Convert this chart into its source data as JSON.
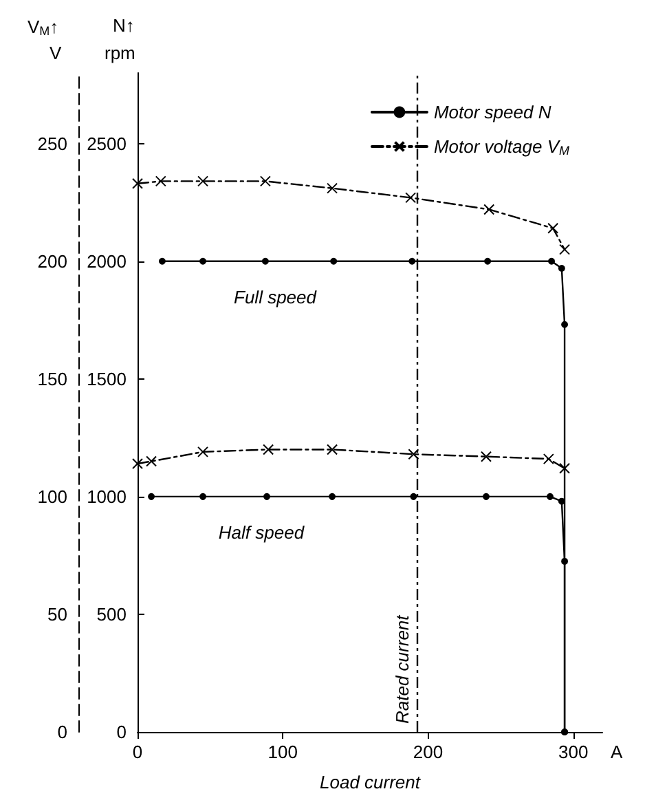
{
  "chart_data": {
    "type": "line",
    "xlabel": "Load current",
    "ylabel": "N↑\nrpm",
    "y2label": "V$_{M}$↑\nV",
    "xlim": [
      0,
      320
    ],
    "xticks": [
      0,
      100,
      200,
      300
    ],
    "ylim": [
      0,
      2800
    ],
    "yticks": [
      0,
      500,
      1000,
      1500,
      2000,
      2500
    ],
    "y2lim": [
      0,
      280
    ],
    "y2ticks": [
      0,
      50,
      100,
      150,
      200,
      250
    ],
    "grid": false,
    "legend": "top right",
    "series": [
      {
        "name": "Motor speed N",
        "color": "#000000",
        "marker": "circle",
        "line_style": "solid",
        "x": [
          17,
          45,
          88,
          135,
          189,
          241,
          285,
          292,
          294,
          294
        ],
        "values": [
          2000,
          2000,
          2000,
          2000,
          2000,
          2000,
          2000,
          1970,
          1731,
          0
        ]
      },
      {
        "name": "Motor voltage V$_{M}$",
        "color": "#000000",
        "marker": "cross",
        "line_style": "dashed",
        "axis": "y2",
        "x": [
          0,
          16,
          45,
          88,
          134,
          188,
          242,
          286,
          294
        ],
        "values": [
          233,
          234,
          234,
          234,
          231,
          227,
          222,
          214,
          205
        ]
      },
      {
        "color": "#000000",
        "marker": "cross",
        "line_style": "dashed",
        "axis": "y2",
        "x": [
          0,
          9.5,
          45,
          90,
          134,
          190,
          240,
          283,
          294
        ],
        "values": [
          114,
          115,
          119,
          120,
          120,
          118,
          117,
          116,
          112
        ]
      },
      {
        "color": "#000000",
        "marker": "circle",
        "line_style": "solid",
        "x": [
          9.5,
          45,
          89,
          134,
          190,
          240,
          284,
          292,
          294,
          294
        ],
        "values": [
          1000,
          1000,
          1000,
          1000,
          1000,
          1000,
          1000,
          980,
          725,
          0
        ]
      }
    ],
    "ref_lines": [
      {
        "axis": "x",
        "value": 192,
        "label": "Rated current",
        "line_style": "dashed",
        "color": "#000000"
      }
    ],
    "annotations": [
      "Full speed",
      "Half speed",
      "A"
    ]
  }
}
